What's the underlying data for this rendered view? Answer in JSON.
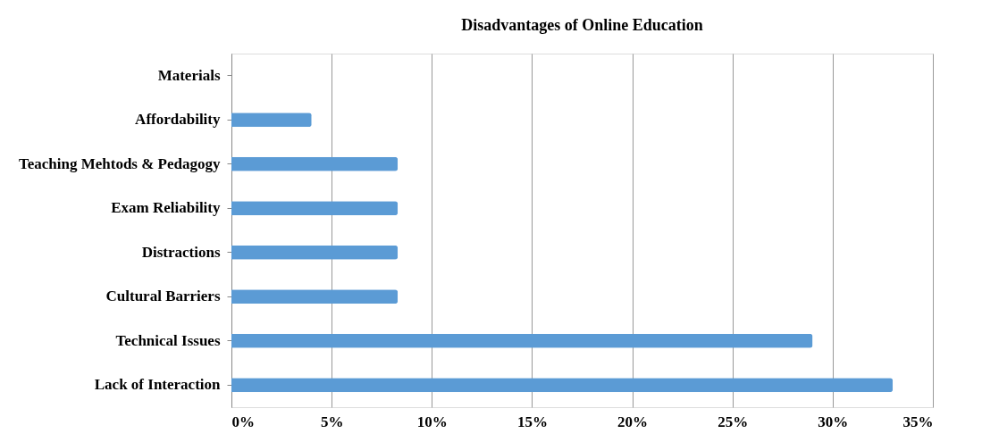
{
  "chart_data": {
    "type": "bar",
    "orientation": "horizontal",
    "title": "Disadvantages of Online Education",
    "categories": [
      "Materials",
      "Affordability",
      "Teaching Mehtods & Pedagogy",
      "Exam Reliability",
      "Distractions",
      "Cultural Barriers",
      "Technical Issues",
      "Lack of Interaction"
    ],
    "values": [
      0,
      4,
      8.3,
      8.3,
      8.3,
      8.3,
      29,
      33
    ],
    "color": "#5b9bd5",
    "xlim": [
      0,
      35
    ],
    "xticks": [
      {
        "value": 0,
        "label": "0%"
      },
      {
        "value": 5,
        "label": "5%"
      },
      {
        "value": 10,
        "label": "10%"
      },
      {
        "value": 15,
        "label": "15%"
      },
      {
        "value": 20,
        "label": "20%"
      },
      {
        "value": 25,
        "label": "25%"
      },
      {
        "value": 30,
        "label": "30%"
      },
      {
        "value": 35,
        "label": "35%"
      }
    ],
    "grid": "x"
  }
}
